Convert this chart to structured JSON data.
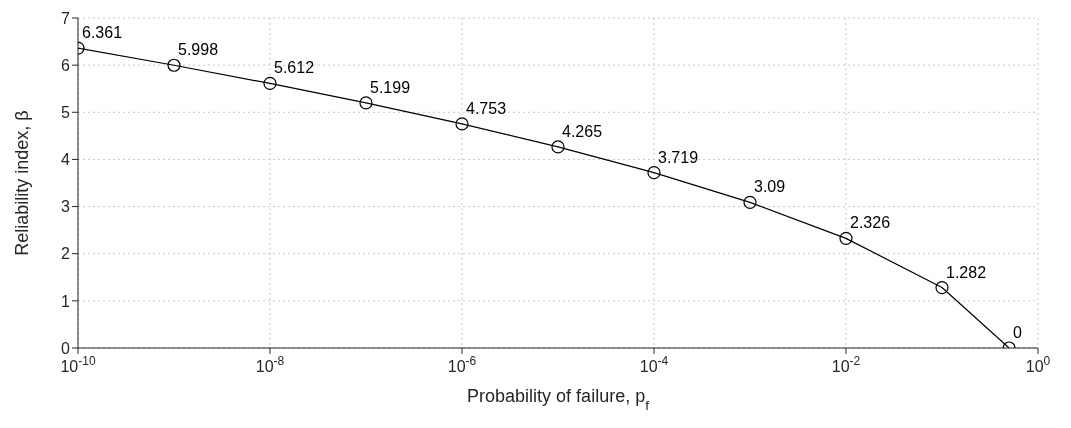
{
  "chart_data": {
    "type": "line",
    "xlabel": "Probability of failure, p$_{f}$",
    "ylabel": "Reliability index, β",
    "x": [
      1e-10,
      1e-09,
      1e-08,
      1e-07,
      1e-06,
      1e-05,
      0.0001,
      0.001,
      0.01,
      0.1,
      0.5
    ],
    "series": [
      {
        "color": "#000000",
        "values": [
          6.361,
          5.998,
          5.612,
          5.199,
          4.753,
          4.265,
          3.719,
          3.09,
          2.326,
          1.282,
          0
        ]
      }
    ],
    "log": "x",
    "xlim": [
      1e-10,
      1
    ],
    "xticks": [
      {
        "value": 1e-10,
        "label": "10$^{-10}$"
      },
      {
        "value": 1e-08,
        "label": "10$^{-8}$"
      },
      {
        "value": 1e-06,
        "label": "10$^{-6}$"
      },
      {
        "value": 0.0001,
        "label": "10$^{-4}$"
      },
      {
        "value": 0.01,
        "label": "10$^{-2}$"
      },
      {
        "value": 1,
        "label": "10$^{0}$"
      }
    ],
    "ylim": [
      0,
      7
    ],
    "yticks": [
      0,
      1,
      2,
      3,
      4,
      5,
      6,
      7
    ],
    "grid": true,
    "marker": "circle",
    "line_style": "solid",
    "data_labels": true
  }
}
